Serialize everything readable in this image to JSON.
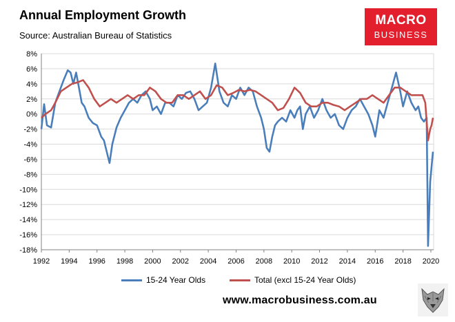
{
  "header": {
    "title": "Annual Employment Growth",
    "subtitle": "Source: Australian Bureau of Statistics"
  },
  "logo": {
    "line1": "MACRO",
    "line2": "BUSINESS",
    "color": "#e31e2d"
  },
  "footer": {
    "website": "www.macrobusiness.com.au"
  },
  "chart_data": {
    "type": "line",
    "title": "Annual Employment Growth",
    "xlabel": "",
    "ylabel": "",
    "xlim": [
      1992,
      2020.2
    ],
    "ylim": [
      -18,
      8
    ],
    "x_ticks": [
      1992,
      1994,
      1996,
      1998,
      2000,
      2002,
      2004,
      2006,
      2008,
      2010,
      2012,
      2014,
      2016,
      2018,
      2020
    ],
    "y_ticks": [
      8,
      6,
      4,
      2,
      0,
      -2,
      -4,
      -6,
      -8,
      -10,
      -12,
      -14,
      -16,
      -18
    ],
    "y_tick_labels": [
      "8%",
      "6%",
      "4%",
      "2%",
      "0%",
      "-2%",
      "-4%",
      "-6%",
      "-8%",
      "-10%",
      "-12%",
      "-14%",
      "-16%",
      "-18%"
    ],
    "grid": true,
    "legend_position": "bottom",
    "series": [
      {
        "name": "15-24 Year Olds",
        "color": "#4a7ebb",
        "points": [
          [
            1992.0,
            -2.0
          ],
          [
            1992.2,
            1.3
          ],
          [
            1992.4,
            -1.5
          ],
          [
            1992.7,
            -1.8
          ],
          [
            1993.0,
            1.5
          ],
          [
            1993.3,
            3.0
          ],
          [
            1993.6,
            4.5
          ],
          [
            1993.9,
            5.8
          ],
          [
            1994.1,
            5.5
          ],
          [
            1994.3,
            4.0
          ],
          [
            1994.5,
            5.5
          ],
          [
            1994.7,
            3.5
          ],
          [
            1994.9,
            1.5
          ],
          [
            1995.1,
            1.0
          ],
          [
            1995.4,
            -0.5
          ],
          [
            1995.7,
            -1.2
          ],
          [
            1996.0,
            -1.5
          ],
          [
            1996.3,
            -3.0
          ],
          [
            1996.5,
            -3.5
          ],
          [
            1996.7,
            -5.0
          ],
          [
            1996.9,
            -6.5
          ],
          [
            1997.1,
            -4.0
          ],
          [
            1997.4,
            -1.8
          ],
          [
            1997.7,
            -0.5
          ],
          [
            1998.0,
            0.5
          ],
          [
            1998.3,
            1.5
          ],
          [
            1998.6,
            2.0
          ],
          [
            1998.9,
            1.5
          ],
          [
            1999.2,
            2.5
          ],
          [
            1999.5,
            3.0
          ],
          [
            1999.8,
            2.0
          ],
          [
            2000.0,
            0.5
          ],
          [
            2000.3,
            1.0
          ],
          [
            2000.6,
            0.0
          ],
          [
            2000.9,
            1.5
          ],
          [
            2001.2,
            1.5
          ],
          [
            2001.5,
            1.0
          ],
          [
            2001.8,
            2.5
          ],
          [
            2002.1,
            2.0
          ],
          [
            2002.4,
            2.8
          ],
          [
            2002.7,
            3.0
          ],
          [
            2003.0,
            2.0
          ],
          [
            2003.3,
            0.5
          ],
          [
            2003.6,
            1.0
          ],
          [
            2003.9,
            1.5
          ],
          [
            2004.2,
            3.5
          ],
          [
            2004.5,
            6.7
          ],
          [
            2004.8,
            3.0
          ],
          [
            2005.1,
            1.5
          ],
          [
            2005.4,
            1.0
          ],
          [
            2005.7,
            2.5
          ],
          [
            2006.0,
            2.0
          ],
          [
            2006.3,
            3.5
          ],
          [
            2006.6,
            2.5
          ],
          [
            2006.9,
            3.5
          ],
          [
            2007.2,
            3.0
          ],
          [
            2007.5,
            1.0
          ],
          [
            2007.8,
            -0.5
          ],
          [
            2008.0,
            -2.0
          ],
          [
            2008.2,
            -4.5
          ],
          [
            2008.4,
            -5.0
          ],
          [
            2008.6,
            -3.0
          ],
          [
            2008.8,
            -1.5
          ],
          [
            2009.0,
            -1.0
          ],
          [
            2009.3,
            -0.5
          ],
          [
            2009.6,
            -1.0
          ],
          [
            2009.9,
            0.5
          ],
          [
            2010.2,
            -0.5
          ],
          [
            2010.4,
            0.5
          ],
          [
            2010.6,
            1.0
          ],
          [
            2010.8,
            -2.0
          ],
          [
            2011.0,
            0.0
          ],
          [
            2011.3,
            1.0
          ],
          [
            2011.6,
            -0.5
          ],
          [
            2011.9,
            0.5
          ],
          [
            2012.2,
            2.0
          ],
          [
            2012.5,
            0.5
          ],
          [
            2012.8,
            -0.5
          ],
          [
            2013.1,
            0.0
          ],
          [
            2013.4,
            -1.5
          ],
          [
            2013.7,
            -2.0
          ],
          [
            2014.0,
            -0.5
          ],
          [
            2014.3,
            0.5
          ],
          [
            2014.6,
            1.0
          ],
          [
            2014.9,
            2.0
          ],
          [
            2015.2,
            1.0
          ],
          [
            2015.5,
            0.0
          ],
          [
            2015.8,
            -1.5
          ],
          [
            2016.0,
            -3.0
          ],
          [
            2016.3,
            0.5
          ],
          [
            2016.6,
            -0.5
          ],
          [
            2016.9,
            1.5
          ],
          [
            2017.2,
            3.5
          ],
          [
            2017.5,
            5.5
          ],
          [
            2017.8,
            3.0
          ],
          [
            2018.0,
            1.0
          ],
          [
            2018.3,
            3.0
          ],
          [
            2018.6,
            1.5
          ],
          [
            2018.9,
            0.5
          ],
          [
            2019.1,
            1.0
          ],
          [
            2019.3,
            -0.5
          ],
          [
            2019.5,
            -1.0
          ],
          [
            2019.7,
            -0.5
          ],
          [
            2019.8,
            -17.5
          ],
          [
            2019.95,
            -9.0
          ],
          [
            2020.05,
            -7.0
          ],
          [
            2020.15,
            -5.0
          ]
        ]
      },
      {
        "name": "Total (excl 15-24 Year Olds)",
        "color": "#c0504d",
        "points": [
          [
            1992.0,
            -0.5
          ],
          [
            1992.3,
            0.0
          ],
          [
            1992.7,
            0.5
          ],
          [
            1993.0,
            1.5
          ],
          [
            1993.4,
            3.0
          ],
          [
            1993.8,
            3.5
          ],
          [
            1994.2,
            4.0
          ],
          [
            1994.6,
            4.2
          ],
          [
            1995.0,
            4.5
          ],
          [
            1995.4,
            3.5
          ],
          [
            1995.8,
            2.0
          ],
          [
            1996.2,
            1.0
          ],
          [
            1996.6,
            1.5
          ],
          [
            1997.0,
            2.0
          ],
          [
            1997.4,
            1.5
          ],
          [
            1997.8,
            2.0
          ],
          [
            1998.2,
            2.5
          ],
          [
            1998.6,
            2.0
          ],
          [
            1999.0,
            2.5
          ],
          [
            1999.4,
            2.5
          ],
          [
            1999.8,
            3.5
          ],
          [
            2000.2,
            3.0
          ],
          [
            2000.6,
            2.0
          ],
          [
            2001.0,
            1.5
          ],
          [
            2001.4,
            1.5
          ],
          [
            2001.8,
            2.5
          ],
          [
            2002.2,
            2.5
          ],
          [
            2002.6,
            2.0
          ],
          [
            2003.0,
            2.5
          ],
          [
            2003.4,
            3.0
          ],
          [
            2003.8,
            2.0
          ],
          [
            2004.2,
            2.5
          ],
          [
            2004.6,
            3.8
          ],
          [
            2005.0,
            3.5
          ],
          [
            2005.4,
            2.5
          ],
          [
            2005.8,
            2.8
          ],
          [
            2006.2,
            3.2
          ],
          [
            2006.6,
            3.0
          ],
          [
            2007.0,
            3.2
          ],
          [
            2007.4,
            3.0
          ],
          [
            2007.8,
            2.5
          ],
          [
            2008.2,
            2.0
          ],
          [
            2008.6,
            1.5
          ],
          [
            2009.0,
            0.5
          ],
          [
            2009.4,
            0.8
          ],
          [
            2009.8,
            2.0
          ],
          [
            2010.2,
            3.5
          ],
          [
            2010.6,
            2.8
          ],
          [
            2011.0,
            1.5
          ],
          [
            2011.4,
            1.0
          ],
          [
            2011.8,
            1.0
          ],
          [
            2012.2,
            1.5
          ],
          [
            2012.6,
            1.5
          ],
          [
            2013.0,
            1.2
          ],
          [
            2013.4,
            1.0
          ],
          [
            2013.8,
            0.5
          ],
          [
            2014.2,
            1.0
          ],
          [
            2014.6,
            1.5
          ],
          [
            2015.0,
            2.0
          ],
          [
            2015.4,
            2.0
          ],
          [
            2015.8,
            2.5
          ],
          [
            2016.2,
            2.0
          ],
          [
            2016.6,
            1.5
          ],
          [
            2017.0,
            2.5
          ],
          [
            2017.4,
            3.5
          ],
          [
            2017.8,
            3.5
          ],
          [
            2018.2,
            3.0
          ],
          [
            2018.6,
            2.5
          ],
          [
            2019.0,
            2.5
          ],
          [
            2019.4,
            2.5
          ],
          [
            2019.6,
            1.5
          ],
          [
            2019.8,
            -3.5
          ],
          [
            2019.95,
            -2.0
          ],
          [
            2020.05,
            -1.5
          ],
          [
            2020.15,
            -0.5
          ]
        ]
      }
    ]
  }
}
